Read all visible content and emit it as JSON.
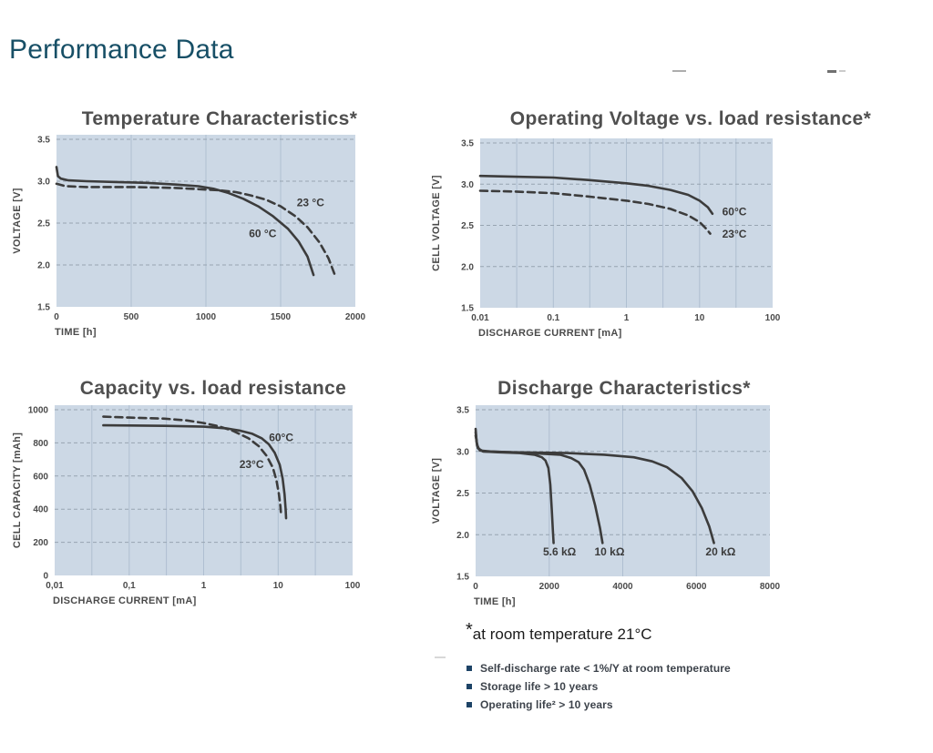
{
  "page": {
    "heading": "Performance Data",
    "footnote": {
      "star": "*",
      "text": "at room temperature 21°C"
    },
    "bullets": [
      "Self-discharge rate < 1%/Y at room temperature",
      "Storage life > 10 years",
      "Operating life² > 10 years"
    ]
  },
  "colors": {
    "heading": "#174f66",
    "chart_title": "#4f4f4f",
    "plot_bg": "#ccd8e5",
    "grid_vertical": "#afbfd1",
    "grid_horizontal": "#97a4b1",
    "curve": "#3c3c3c",
    "tick_text": "#4a4a4a",
    "bullet": "#1d4366",
    "bullet_text": "#3d434b"
  },
  "chart_data": [
    {
      "type": "line",
      "title": "Temperature Characteristics*",
      "xlabel": "TIME [h]",
      "ylabel": "VOLTAGE [V]",
      "xscale": "linear",
      "xlim": [
        0,
        2000
      ],
      "ylim": [
        1.5,
        3.5
      ],
      "xticks": {
        "values": [
          0,
          500,
          1000,
          1500,
          2000
        ],
        "labels": [
          "0",
          "500",
          "1000",
          "1500",
          "2000"
        ]
      },
      "yticks": {
        "values": [
          1.5,
          2.0,
          2.5,
          3.0,
          3.5
        ],
        "labels": [
          "1.5",
          "2.0",
          "2.5",
          "3.0",
          "3.5"
        ]
      },
      "xgrid": [
        500,
        1000,
        1500
      ],
      "ygrid": [
        2.0,
        2.5,
        3.0,
        3.5
      ],
      "legend_position": "on-curve",
      "grid": true,
      "series": [
        {
          "name": "60 °C",
          "dash": false,
          "label": {
            "text": "60 °C",
            "x": 1380,
            "y": 2.33
          },
          "points": [
            [
              0,
              3.17
            ],
            [
              10,
              3.06
            ],
            [
              30,
              3.03
            ],
            [
              80,
              3.01
            ],
            [
              200,
              3.0
            ],
            [
              400,
              2.99
            ],
            [
              600,
              2.98
            ],
            [
              800,
              2.96
            ],
            [
              950,
              2.94
            ],
            [
              1050,
              2.91
            ],
            [
              1150,
              2.86
            ],
            [
              1250,
              2.79
            ],
            [
              1350,
              2.7
            ],
            [
              1450,
              2.58
            ],
            [
              1550,
              2.43
            ],
            [
              1620,
              2.28
            ],
            [
              1680,
              2.1
            ],
            [
              1720,
              1.88
            ]
          ]
        },
        {
          "name": "23 °C",
          "dash": true,
          "label": {
            "text": "23 °C",
            "x": 1700,
            "y": 2.7
          },
          "points": [
            [
              0,
              2.97
            ],
            [
              60,
              2.94
            ],
            [
              200,
              2.93
            ],
            [
              500,
              2.93
            ],
            [
              800,
              2.92
            ],
            [
              1000,
              2.9
            ],
            [
              1100,
              2.89
            ],
            [
              1200,
              2.87
            ],
            [
              1300,
              2.83
            ],
            [
              1400,
              2.78
            ],
            [
              1500,
              2.7
            ],
            [
              1600,
              2.58
            ],
            [
              1680,
              2.45
            ],
            [
              1760,
              2.27
            ],
            [
              1820,
              2.08
            ],
            [
              1865,
              1.87
            ]
          ]
        }
      ]
    },
    {
      "type": "line",
      "title": "Operating Voltage vs. load resistance*",
      "xlabel": "DISCHARGE CURRENT [mA]",
      "ylabel": "CELL VOLTAGE [V]",
      "xscale": "log",
      "xlim": [
        0.01,
        100
      ],
      "ylim": [
        1.5,
        3.5
      ],
      "xticks": {
        "values": [
          0.01,
          0.1,
          1,
          10,
          100
        ],
        "labels": [
          "0.01",
          "0.1",
          "1",
          "10",
          "100"
        ]
      },
      "yticks": {
        "values": [
          1.5,
          2.0,
          2.5,
          3.0,
          3.5
        ],
        "labels": [
          "1.5",
          "2.0",
          "2.5",
          "3.0",
          "3.5"
        ]
      },
      "xgrid": [
        0.0316,
        0.1,
        0.316,
        1,
        3.16,
        10,
        31.6
      ],
      "ygrid": [
        2.0,
        2.5,
        3.0,
        3.5
      ],
      "legend_position": "on-curve",
      "grid": true,
      "series": [
        {
          "name": "60°C",
          "dash": false,
          "label": {
            "text": "60°C",
            "x": 30,
            "y": 2.62
          },
          "points": [
            [
              0.01,
              3.1
            ],
            [
              0.03,
              3.09
            ],
            [
              0.1,
              3.08
            ],
            [
              0.3,
              3.05
            ],
            [
              1,
              3.01
            ],
            [
              2,
              2.98
            ],
            [
              4,
              2.93
            ],
            [
              7,
              2.87
            ],
            [
              10,
              2.8
            ],
            [
              13,
              2.72
            ],
            [
              15,
              2.64
            ]
          ]
        },
        {
          "name": "23°C",
          "dash": true,
          "label": {
            "text": "23°C",
            "x": 30,
            "y": 2.35
          },
          "points": [
            [
              0.01,
              2.92
            ],
            [
              0.03,
              2.91
            ],
            [
              0.1,
              2.89
            ],
            [
              0.3,
              2.85
            ],
            [
              1,
              2.8
            ],
            [
              2,
              2.76
            ],
            [
              4,
              2.7
            ],
            [
              7,
              2.62
            ],
            [
              10,
              2.54
            ],
            [
              12,
              2.47
            ],
            [
              14,
              2.4
            ]
          ]
        }
      ]
    },
    {
      "type": "line",
      "title": "Capacity vs. load resistance",
      "xlabel": "DISCHARGE CURRENT [mA]",
      "ylabel": "CELL CAPACITY [mAh]",
      "xscale": "log",
      "xlim": [
        0.01,
        100
      ],
      "ylim": [
        0,
        1000
      ],
      "xticks": {
        "values": [
          0.01,
          0.1,
          1,
          10,
          100
        ],
        "labels": [
          "0,01",
          "0,1",
          "1",
          "10",
          "100"
        ]
      },
      "yticks": {
        "values": [
          0,
          200,
          400,
          600,
          800,
          1000
        ],
        "labels": [
          "0",
          "200",
          "400",
          "600",
          "800",
          "1000"
        ]
      },
      "xgrid": [
        0.0316,
        0.1,
        0.316,
        1,
        3.16,
        10,
        31.6
      ],
      "ygrid": [
        200,
        400,
        600,
        800,
        1000
      ],
      "legend_position": "on-curve",
      "grid": true,
      "series": [
        {
          "name": "23°C",
          "dash": true,
          "label": {
            "text": "23°C",
            "x": 4.4,
            "y": 648
          },
          "points": [
            [
              0.045,
              958
            ],
            [
              0.1,
              953
            ],
            [
              0.3,
              946
            ],
            [
              0.6,
              935
            ],
            [
              1,
              920
            ],
            [
              1.6,
              900
            ],
            [
              2.5,
              872
            ],
            [
              4,
              828
            ],
            [
              5.5,
              780
            ],
            [
              7,
              722
            ],
            [
              8.5,
              650
            ],
            [
              9.5,
              575
            ],
            [
              10.2,
              495
            ],
            [
              10.7,
              420
            ],
            [
              11,
              360
            ]
          ]
        },
        {
          "name": "60°C",
          "dash": false,
          "label": {
            "text": "60°C",
            "x": 11,
            "y": 810
          },
          "points": [
            [
              0.045,
              906
            ],
            [
              0.1,
              905
            ],
            [
              0.3,
              903
            ],
            [
              1,
              898
            ],
            [
              2,
              888
            ],
            [
              3,
              875
            ],
            [
              4.5,
              855
            ],
            [
              6,
              828
            ],
            [
              7.5,
              792
            ],
            [
              9,
              740
            ],
            [
              10.5,
              668
            ],
            [
              11.5,
              585
            ],
            [
              12.2,
              490
            ],
            [
              12.6,
              400
            ],
            [
              12.8,
              345
            ]
          ]
        }
      ]
    },
    {
      "type": "line",
      "title": "Discharge Characteristics*",
      "xlabel": "TIME [h]",
      "ylabel": "VOLTAGE [V]",
      "xscale": "linear",
      "xlim": [
        0,
        8000
      ],
      "ylim": [
        1.5,
        3.5
      ],
      "xticks": {
        "values": [
          0,
          2000,
          4000,
          6000,
          8000
        ],
        "labels": [
          "0",
          "2000",
          "4000",
          "6000",
          "8000"
        ]
      },
      "yticks": {
        "values": [
          1.5,
          2.0,
          2.5,
          3.0,
          3.5
        ],
        "labels": [
          "1.5",
          "2.0",
          "2.5",
          "3.0",
          "3.5"
        ]
      },
      "xgrid": [
        2000,
        4000,
        6000
      ],
      "ygrid": [
        2.0,
        2.5,
        3.0,
        3.5
      ],
      "legend_position": "on-curve",
      "grid": true,
      "series": [
        {
          "name": "5.6 kΩ",
          "dash": false,
          "label": {
            "text": "5.6 kΩ",
            "x": 2280,
            "y": 1.75
          },
          "points": [
            [
              0,
              3.27
            ],
            [
              30,
              3.1
            ],
            [
              80,
              3.03
            ],
            [
              200,
              3.0
            ],
            [
              600,
              2.99
            ],
            [
              1200,
              2.98
            ],
            [
              1600,
              2.96
            ],
            [
              1800,
              2.93
            ],
            [
              1900,
              2.89
            ],
            [
              1980,
              2.8
            ],
            [
              2030,
              2.6
            ],
            [
              2070,
              2.3
            ],
            [
              2100,
              2.05
            ],
            [
              2120,
              1.9
            ]
          ]
        },
        {
          "name": "10 kΩ",
          "dash": false,
          "label": {
            "text": "10 kΩ",
            "x": 3640,
            "y": 1.75
          },
          "points": [
            [
              0,
              3.23
            ],
            [
              40,
              3.07
            ],
            [
              120,
              3.01
            ],
            [
              400,
              3.0
            ],
            [
              1500,
              2.98
            ],
            [
              2300,
              2.96
            ],
            [
              2600,
              2.92
            ],
            [
              2800,
              2.87
            ],
            [
              2950,
              2.78
            ],
            [
              3100,
              2.6
            ],
            [
              3250,
              2.35
            ],
            [
              3380,
              2.08
            ],
            [
              3450,
              1.9
            ]
          ]
        },
        {
          "name": "20 kΩ",
          "dash": false,
          "label": {
            "text": "20 kΩ",
            "x": 6660,
            "y": 1.75
          },
          "points": [
            [
              0,
              3.19
            ],
            [
              60,
              3.04
            ],
            [
              200,
              3.0
            ],
            [
              1000,
              2.99
            ],
            [
              2500,
              2.98
            ],
            [
              3500,
              2.96
            ],
            [
              4300,
              2.93
            ],
            [
              4800,
              2.88
            ],
            [
              5200,
              2.81
            ],
            [
              5600,
              2.68
            ],
            [
              5900,
              2.52
            ],
            [
              6150,
              2.32
            ],
            [
              6350,
              2.1
            ],
            [
              6480,
              1.9
            ]
          ]
        }
      ]
    }
  ]
}
